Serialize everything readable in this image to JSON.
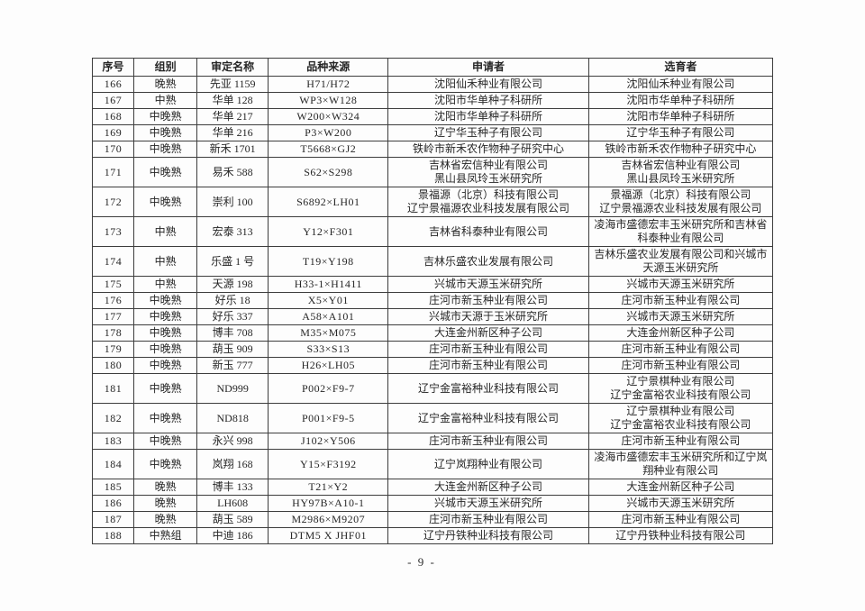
{
  "page": {
    "number_label": "- 9 -"
  },
  "table": {
    "headers": [
      "序号",
      "组别",
      "审定名称",
      "品种来源",
      "申请者",
      "选育者"
    ],
    "rows": [
      {
        "no": "166",
        "group": "晚熟",
        "name": "先亚 1159",
        "source": "H71/H72",
        "applicant": "沈阳仙禾种业有限公司",
        "breeder": "沈阳仙禾种业有限公司"
      },
      {
        "no": "167",
        "group": "中熟",
        "name": "华单 128",
        "source": "WP3×W128",
        "applicant": "沈阳市华单种子科研所",
        "breeder": "沈阳市华单种子科研所"
      },
      {
        "no": "168",
        "group": "中晚熟",
        "name": "华单 217",
        "source": "W200×W324",
        "applicant": "沈阳市华单种子科研所",
        "breeder": "沈阳市华单种子科研所"
      },
      {
        "no": "169",
        "group": "中晚熟",
        "name": "华单 216",
        "source": "P3×W200",
        "applicant": "辽宁华玉种子有限公司",
        "breeder": "辽宁华玉种子有限公司"
      },
      {
        "no": "170",
        "group": "中晚熟",
        "name": "新禾 1701",
        "source": "T5668×GJ2",
        "applicant": "铁岭市新禾农作物种子研究中心",
        "breeder": "铁岭市新禾农作物种子研究中心"
      },
      {
        "no": "171",
        "group": "中晚熟",
        "name": "易禾 588",
        "source": "S62×S298",
        "applicant": "吉林省宏信种业有限公司\n黑山县凤玲玉米研究所",
        "breeder": "吉林省宏信种业有限公司\n黑山县凤玲玉米研究所"
      },
      {
        "no": "172",
        "group": "中晚熟",
        "name": "崇利 100",
        "source": "S6892×LH01",
        "applicant": "景福源（北京）科技有限公司\n辽宁景福源农业科技发展有限公司",
        "breeder": "景福源（北京）科技有限公司\n辽宁景福源农业科技发展有限公司"
      },
      {
        "no": "173",
        "group": "中熟",
        "name": "宏泰 313",
        "source": "Y12×F301",
        "applicant": "吉林省科泰种业有限公司",
        "breeder": "凌海市盛德宏丰玉米研究所和吉林省科泰种业有限公司"
      },
      {
        "no": "174",
        "group": "中熟",
        "name": "乐盛 1 号",
        "source": "T19×Y198",
        "applicant": "吉林乐盛农业发展有限公司",
        "breeder": "吉林乐盛农业发展有限公司和兴城市天源玉米研究所"
      },
      {
        "no": "175",
        "group": "中熟",
        "name": "天源 198",
        "source": "H33-1×H1411",
        "applicant": "兴城市天源玉米研究所",
        "breeder": "兴城市天源玉米研究所"
      },
      {
        "no": "176",
        "group": "中晚熟",
        "name": "好乐 18",
        "source": "X5×Y01",
        "applicant": "庄河市新玉种业有限公司",
        "breeder": "庄河市新玉种业有限公司"
      },
      {
        "no": "177",
        "group": "中晚熟",
        "name": "好乐 337",
        "source": "A58×A101",
        "applicant": "兴城市天源于玉米研究所",
        "breeder": "兴城市天源玉米研究所"
      },
      {
        "no": "178",
        "group": "中晚熟",
        "name": "博丰 708",
        "source": "M35×M075",
        "applicant": "大连金州新区种子公司",
        "breeder": "大连金州新区种子公司"
      },
      {
        "no": "179",
        "group": "中晚熟",
        "name": "葫玉 909",
        "source": "S33×S13",
        "applicant": "庄河市新玉种业有限公司",
        "breeder": "庄河市新玉种业有限公司"
      },
      {
        "no": "180",
        "group": "中晚熟",
        "name": "新玉 777",
        "source": "H26×LH05",
        "applicant": "庄河市新玉种业有限公司",
        "breeder": "庄河市新玉种业有限公司"
      },
      {
        "no": "181",
        "group": "中晚熟",
        "name": "ND999",
        "source": "P002×F9-7",
        "applicant": "辽宁金富裕种业科技有限公司",
        "breeder": "辽宁景棋种业有限公司\n辽宁金富裕农业科技有限公司"
      },
      {
        "no": "182",
        "group": "中晚熟",
        "name": "ND818",
        "source": "P001×F9-5",
        "applicant": "辽宁金富裕种业科技有限公司",
        "breeder": "辽宁景棋种业有限公司\n辽宁金富裕农业科技有限公司"
      },
      {
        "no": "183",
        "group": "中晚熟",
        "name": "永兴 998",
        "source": "J102×Y506",
        "applicant": "庄河市新玉种业有限公司",
        "breeder": "庄河市新玉种业有限公司"
      },
      {
        "no": "184",
        "group": "中晚熟",
        "name": "岚翔 168",
        "source": "Y15×F3192",
        "applicant": "辽宁岚翔种业有限公司",
        "breeder": "凌海市盛德宏丰玉米研究所和辽宁岚翔种业有限公司"
      },
      {
        "no": "185",
        "group": "晚熟",
        "name": "博丰 133",
        "source": "T21×Y2",
        "applicant": "大连金州新区种子公司",
        "breeder": "大连金州新区种子公司"
      },
      {
        "no": "186",
        "group": "晚熟",
        "name": "LH608",
        "source": "HY97B×A10-1",
        "applicant": "兴城市天源玉米研究所",
        "breeder": "兴城市天源玉米研究所"
      },
      {
        "no": "187",
        "group": "晚熟",
        "name": "葫玉 589",
        "source": "M2986×M9207",
        "applicant": "庄河市新玉种业有限公司",
        "breeder": "庄河市新玉种业有限公司"
      },
      {
        "no": "188",
        "group": "中熟组",
        "name": "中迪 186",
        "source": "DTM5 X JHF01",
        "applicant": "辽宁丹铁种业科技有限公司",
        "breeder": "辽宁丹铁种业科技有限公司"
      }
    ]
  }
}
